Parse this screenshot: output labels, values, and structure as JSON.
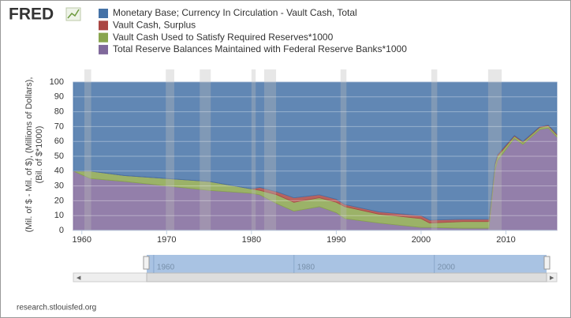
{
  "logo": "FRED",
  "source": "research.stlouisfed.org",
  "chart_data": {
    "type": "stacked-area",
    "y_label": "(Mil. of $ - Mil. of $), (Millions of Dollars), (Bil. of $*1000)",
    "x": [
      1959,
      1961,
      1965,
      1970,
      1975,
      1980,
      1981,
      1983,
      1985,
      1988,
      1990,
      1991,
      1995,
      2000,
      2001,
      2005,
      2008,
      2008.7,
      2009,
      2011,
      2012,
      2014,
      2015,
      2016
    ],
    "series": [
      {
        "name": "Monetary Base; Currency In Circulation - Vault Cash, Total",
        "color": "#4572a7",
        "values": [
          60,
          60,
          63,
          65,
          67,
          72,
          71,
          74,
          78,
          76,
          79,
          82.5,
          87.5,
          90,
          93,
          92.5,
          92.5,
          55,
          49,
          36,
          40,
          30,
          29,
          35
        ]
      },
      {
        "name": "Vault Cash, Surplus",
        "color": "#aa4643",
        "values": [
          0,
          0,
          0,
          0,
          0,
          0,
          2,
          2,
          3,
          2,
          2,
          1.5,
          1.5,
          2,
          2,
          1.5,
          1.5,
          1,
          1,
          0.5,
          0.5,
          0.5,
          0.5,
          0.5
        ]
      },
      {
        "name": "Vault Cash Used to Satisfy Required Reserves*1000",
        "color": "#89a54e",
        "values": [
          0,
          5,
          4,
          5,
          6,
          3,
          3,
          6,
          6,
          6,
          7,
          8,
          6,
          6,
          3,
          4.5,
          4.5,
          4,
          3,
          1.5,
          1.5,
          1.5,
          1.5,
          1.5
        ]
      },
      {
        "name": "Total Reserve Balances Maintained with Federal Reserve Banks*1000",
        "color": "#80699b",
        "values": [
          40,
          35,
          33,
          30,
          27,
          25,
          24,
          18,
          13,
          16,
          12,
          8,
          5,
          2,
          2,
          1.5,
          1.5,
          40,
          47,
          62,
          58,
          68,
          69,
          63
        ]
      }
    ],
    "recessions": [
      [
        1960.3,
        1961.1
      ],
      [
        1969.9,
        1970.9
      ],
      [
        1973.9,
        1975.2
      ],
      [
        1980.0,
        1980.5
      ],
      [
        1981.5,
        1982.9
      ],
      [
        1990.5,
        1991.2
      ],
      [
        2001.2,
        2001.9
      ],
      [
        2007.9,
        2009.5
      ]
    ],
    "xlim": [
      1959,
      2016
    ],
    "xticks": [
      1960,
      1970,
      1980,
      1990,
      2000,
      2010
    ],
    "ylim": [
      0,
      100
    ],
    "yticks": [
      0,
      10,
      20,
      30,
      40,
      50,
      60,
      70,
      80,
      90,
      100
    ],
    "grid": true,
    "navigator_xticks": [
      1960,
      1980,
      2000
    ]
  }
}
